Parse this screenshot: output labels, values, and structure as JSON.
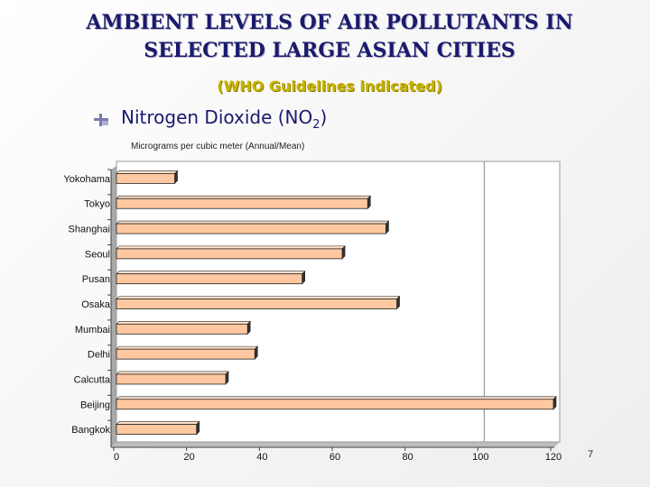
{
  "slide": {
    "title_line1": "AMBIENT LEVELS OF AIR POLLUTANTS IN",
    "title_line2": "SELECTED LARGE ASIAN CITIES",
    "subtitle": "(WHO Guidelines indicated)",
    "heading_text": "Nitrogen Dioxide (NO",
    "heading_sub": "2",
    "heading_close": ")",
    "units": "Micrograms per cubic meter (Annual/Mean)",
    "page_number": "7",
    "bullet_icon": "bullet-bar-icon"
  },
  "chart_data": {
    "type": "bar",
    "orientation": "horizontal",
    "categories": [
      "Yokohama",
      "Tokyo",
      "Shanghai",
      "Seoul",
      "Pusan",
      "Osaka",
      "Mumbai",
      "Delhi",
      "Calcutta",
      "Beijing",
      "Bangkok"
    ],
    "values": [
      16,
      69,
      74,
      62,
      51,
      77,
      36,
      38,
      30,
      120,
      22
    ],
    "xlim": [
      0,
      120
    ],
    "xticks": [
      0,
      20,
      40,
      60,
      80,
      100,
      120
    ],
    "reference_line": 100,
    "grid": false,
    "colors": {
      "bar_fill": "#ffc8a0",
      "bar_stroke": "#222222",
      "plot_bg": "#ffffff"
    }
  }
}
